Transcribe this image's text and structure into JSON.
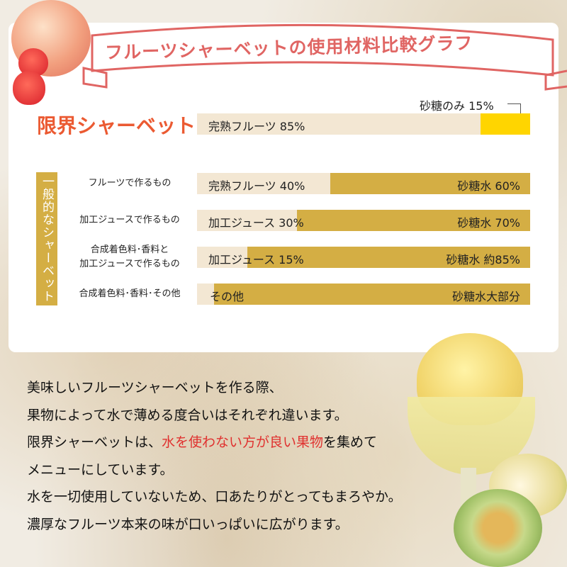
{
  "banner_title": "フルーツシャーベットの使用材料比較グラフ",
  "chart_data": {
    "type": "bar",
    "stacked": true,
    "orientation": "horizontal",
    "title": "フルーツシャーベットの使用材料比較グラフ",
    "colors": {
      "fruit": "#f3e7d3",
      "sugar_limit": "#ffd500",
      "sugar_water": "#d4ae44"
    },
    "group_label": "一般的なシャーベット",
    "highlight_label": "限界シャーベット",
    "top_note": "砂糖のみ 15%",
    "rows": [
      {
        "category": "限界シャーベット",
        "fruit": 85,
        "sugar": 15,
        "fruit_label": "完熟フルーツ 85%",
        "sugar_label": ""
      },
      {
        "category": "フルーツで作るもの",
        "fruit": 40,
        "sugar": 60,
        "fruit_label": "完熟フルーツ 40%",
        "sugar_label": "砂糖水 60%"
      },
      {
        "category": "加工ジュースで作るもの",
        "fruit": 30,
        "sugar": 70,
        "fruit_label": "加工ジュース 30%",
        "sugar_label": "砂糖水 70%"
      },
      {
        "category": "合成着色料･香料と\n加工ジュースで作るもの",
        "fruit": 15,
        "sugar": 85,
        "fruit_label": "加工ジュース 15%",
        "sugar_label": "砂糖水 約85%"
      },
      {
        "category": "合成着色料･香料･その他",
        "fruit": 5,
        "sugar": 95,
        "fruit_label": "その他",
        "sugar_label": "砂糖水大部分"
      }
    ],
    "xlim": [
      0,
      100
    ]
  },
  "description": {
    "line1": "美味しいフルーツシャーベットを作る際、",
    "line2": "果物によって水で薄める度合いはそれぞれ違います。",
    "line3_pre": "限界シャーベットは、",
    "line3_red": "水を使わない方が良い果物",
    "line3_post": "を集めて",
    "line4": "メニューにしています。",
    "line5": "水を一切使用していないため、口あたりがとってもまろやか。",
    "line6": "濃厚なフルーツ本来の味が口いっぱいに広がります。"
  }
}
